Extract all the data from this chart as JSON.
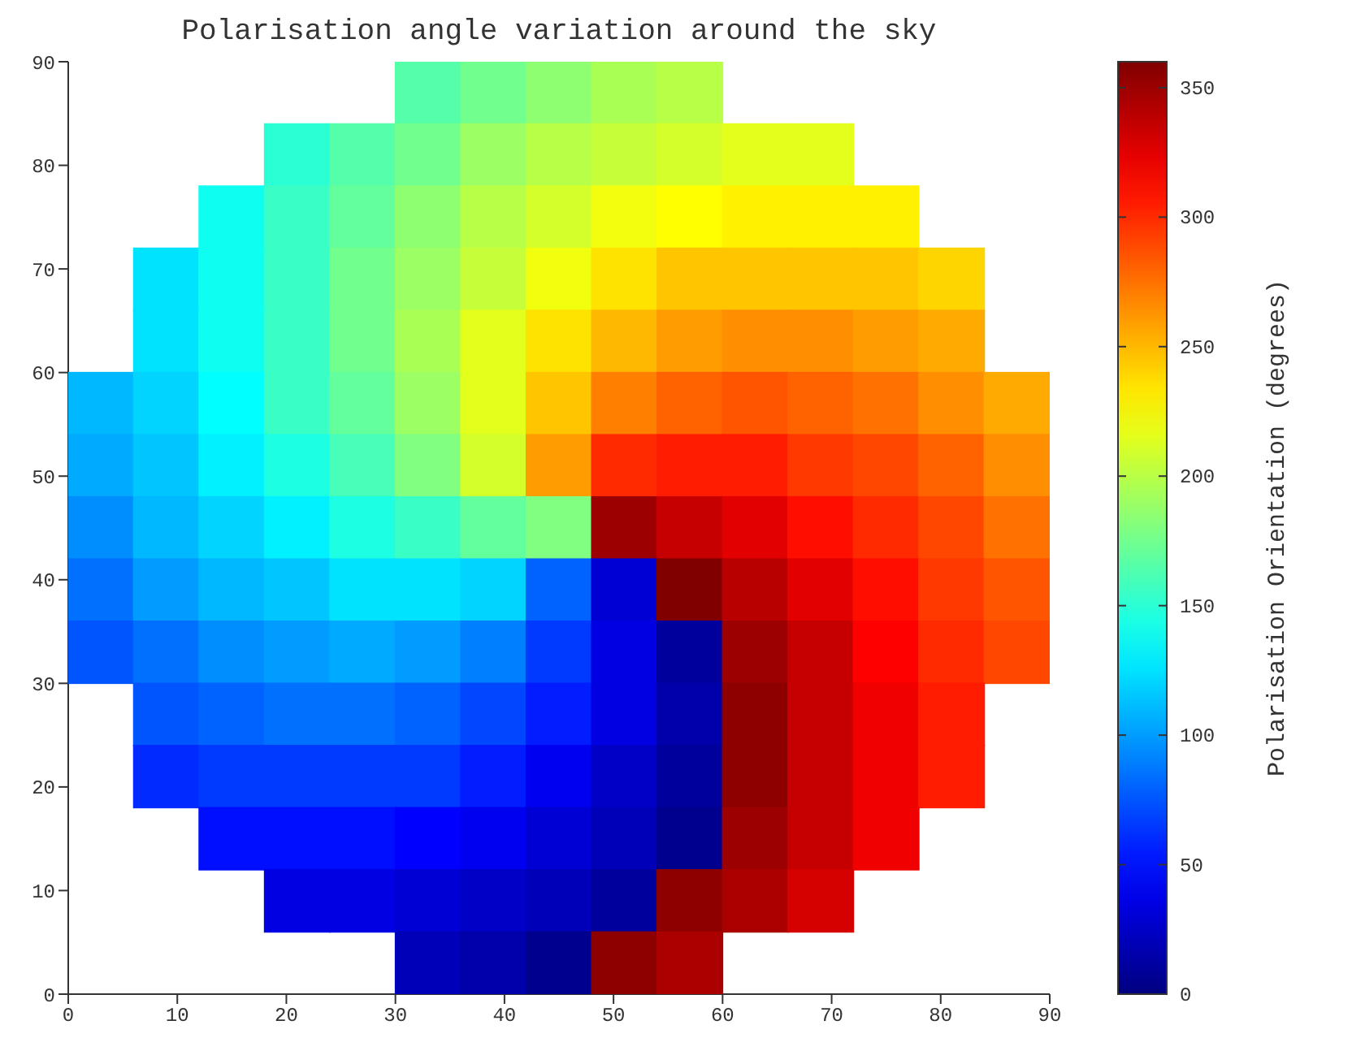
{
  "chart_data": {
    "type": "heatmap",
    "title": "Polarisation angle variation around the sky",
    "clabel": "Polarisation Orientation (degrees)",
    "x": [
      3,
      9,
      15,
      21,
      27,
      33,
      39,
      45,
      51,
      57,
      63,
      69,
      75,
      81,
      87
    ],
    "y": [
      87,
      81,
      75,
      69,
      63,
      57,
      51,
      45,
      39,
      33,
      27,
      21,
      15,
      9,
      3
    ],
    "xlim": [
      0,
      90
    ],
    "ylim": [
      0,
      90
    ],
    "xticks": [
      0,
      10,
      20,
      30,
      40,
      50,
      60,
      70,
      80,
      90
    ],
    "yticks": [
      0,
      10,
      20,
      30,
      40,
      50,
      60,
      70,
      80,
      90
    ],
    "clim": [
      0,
      360
    ],
    "cticks": [
      0,
      50,
      100,
      150,
      200,
      250,
      300,
      350
    ],
    "cells": [
      [
        null,
        null,
        null,
        null,
        null,
        165,
        175,
        185,
        195,
        200,
        null,
        null,
        null,
        null,
        null
      ],
      [
        null,
        null,
        null,
        150,
        165,
        175,
        190,
        200,
        205,
        210,
        215,
        215,
        null,
        null,
        null
      ],
      [
        null,
        null,
        140,
        155,
        170,
        185,
        200,
        210,
        220,
        225,
        230,
        230,
        230,
        null,
        null
      ],
      [
        null,
        125,
        140,
        155,
        175,
        190,
        205,
        220,
        235,
        245,
        245,
        245,
        245,
        240,
        null
      ],
      [
        null,
        125,
        140,
        155,
        175,
        195,
        215,
        235,
        250,
        260,
        265,
        265,
        260,
        255,
        null
      ],
      [
        110,
        120,
        135,
        155,
        170,
        190,
        215,
        245,
        270,
        280,
        285,
        280,
        275,
        265,
        255
      ],
      [
        105,
        115,
        130,
        145,
        160,
        180,
        210,
        260,
        300,
        305,
        305,
        295,
        290,
        280,
        265
      ],
      [
        95,
        110,
        120,
        130,
        145,
        155,
        170,
        180,
        350,
        335,
        325,
        310,
        300,
        290,
        275
      ],
      [
        85,
        100,
        110,
        115,
        125,
        125,
        120,
        80,
        30,
        360,
        340,
        325,
        310,
        295,
        285
      ],
      [
        75,
        85,
        95,
        100,
        105,
        100,
        90,
        65,
        35,
        10,
        350,
        335,
        315,
        300,
        290
      ],
      [
        null,
        75,
        80,
        85,
        85,
        80,
        70,
        55,
        35,
        15,
        355,
        335,
        320,
        305,
        null
      ],
      [
        null,
        60,
        65,
        65,
        65,
        65,
        55,
        40,
        25,
        10,
        355,
        335,
        320,
        305,
        null
      ],
      [
        null,
        null,
        50,
        50,
        50,
        45,
        40,
        30,
        20,
        5,
        350,
        335,
        320,
        null,
        null
      ],
      [
        null,
        null,
        null,
        35,
        35,
        30,
        25,
        20,
        10,
        355,
        345,
        330,
        null,
        null,
        null
      ],
      [
        null,
        null,
        null,
        null,
        null,
        20,
        15,
        5,
        355,
        345,
        null,
        null,
        null,
        null,
        null
      ]
    ]
  }
}
